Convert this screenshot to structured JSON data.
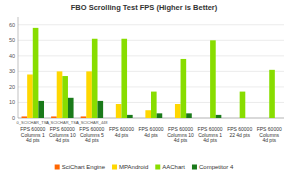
{
  "chart_data": {
    "type": "bar",
    "title": "FBO Scrolling Test FPS (Higher is Better)",
    "categories": [
      "FPS 60000 Columns 1\n4d pts",
      "FPS 60000 Columns 10\n4d pts",
      "FPS 60000 Columns 5\n4d pts",
      "FPS 60000\n4d pts",
      "FPS 60000\n4d pts",
      "FPS 60000 Columns 10\n4d pts",
      "FPS 60000 Columns 1\n4d pts",
      "FPS 60000\n22 4d pts",
      "FPS 60000 Columns\n4d pts"
    ],
    "series": [
      {
        "name": "SciChart Engine",
        "color": "#FF6600",
        "values": [
          1,
          1,
          1,
          0,
          0,
          0,
          0,
          0,
          0
        ]
      },
      {
        "name": "MPAndroid",
        "color": "#FFD700",
        "values": [
          28,
          30,
          30,
          9,
          5,
          9,
          0,
          0,
          0
        ]
      },
      {
        "name": "AAChart",
        "color": "#88DD00",
        "values": [
          58,
          27,
          51,
          51,
          17,
          38,
          50,
          17,
          31
        ]
      },
      {
        "name": "Competitor 4",
        "color": "#1A7A1A",
        "values": [
          11,
          13,
          11,
          2,
          3,
          3,
          2,
          0,
          0
        ]
      }
    ],
    "annotations": [
      {
        "text": "0_SCICHAR_TSA",
        "category": 0
      },
      {
        "text": "0_SCICHAR_TSA",
        "category": 1
      },
      {
        "text": "0_SCICHAR_448",
        "category": 2
      }
    ],
    "ylim": [
      0,
      65
    ],
    "yticks": [
      0,
      10,
      20,
      30,
      40,
      50,
      60
    ],
    "grid": true,
    "legend": "bottom"
  }
}
